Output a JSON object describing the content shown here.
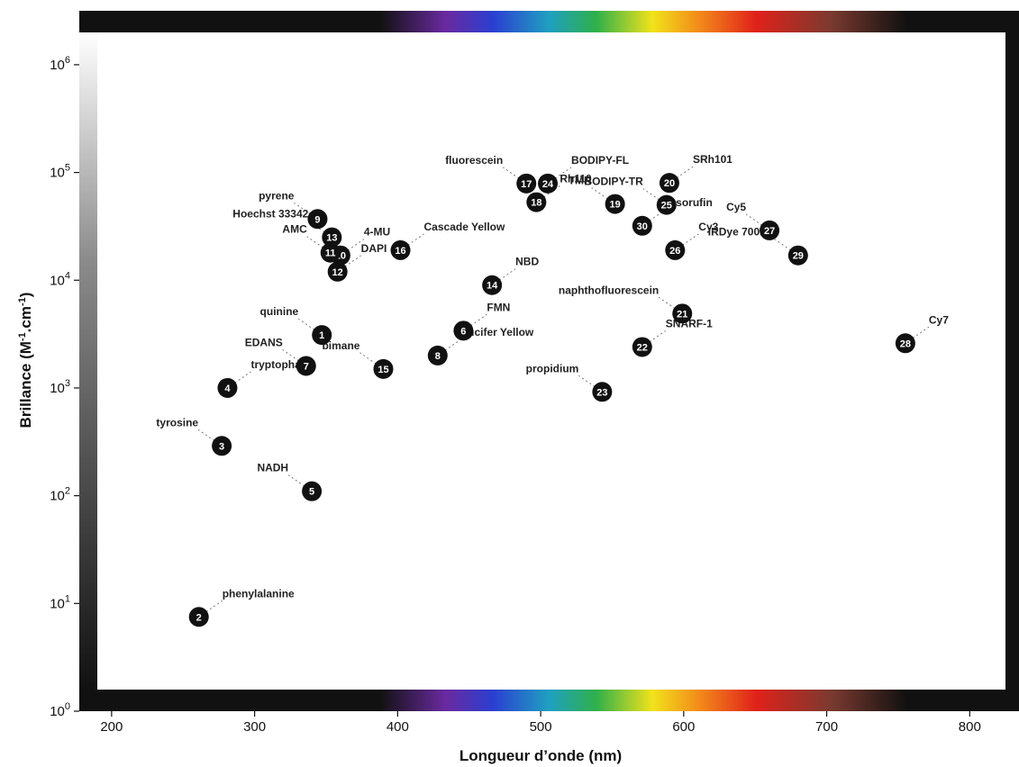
{
  "chart_data": {
    "type": "scatter",
    "title": "",
    "xlabel": "Longueur d’onde (nm)",
    "ylabel": "Brillance (M-1.cm-1)",
    "ylabel_parts": {
      "main": "Brillance (M",
      "sup1": "-1",
      "mid": ".cm",
      "sup2": "-1",
      "end": ")"
    },
    "xlim": [
      190,
      825
    ],
    "ylim_log10": [
      0,
      6.3
    ],
    "yscale": "log",
    "xticks": [
      200,
      300,
      400,
      500,
      600,
      700,
      800
    ],
    "yticks": [
      {
        "exp": 0,
        "base": "10",
        "sup": "0"
      },
      {
        "exp": 1,
        "base": "10",
        "sup": "1"
      },
      {
        "exp": 2,
        "base": "10",
        "sup": "2"
      },
      {
        "exp": 3,
        "base": "10",
        "sup": "3"
      },
      {
        "exp": 4,
        "base": "10",
        "sup": "4"
      },
      {
        "exp": 5,
        "base": "10",
        "sup": "5"
      },
      {
        "exp": 6,
        "base": "10",
        "sup": "6"
      }
    ],
    "grid": false,
    "legend": "none",
    "points": [
      {
        "id": "1",
        "x": 347,
        "y": 3100,
        "name": "quinine",
        "color": "#3a4fb0"
      },
      {
        "id": "2",
        "x": 261,
        "y": 7.5,
        "name": "phenylalanine",
        "color": "#555555"
      },
      {
        "id": "3",
        "x": 277,
        "y": 290,
        "name": "tyrosine",
        "color": "#555555"
      },
      {
        "id": "4",
        "x": 281,
        "y": 1000,
        "name": "tryptophan",
        "color": "#555555"
      },
      {
        "id": "5",
        "x": 340,
        "y": 110,
        "name": "NADH",
        "color": "#7a56b8"
      },
      {
        "id": "6",
        "x": 446,
        "y": 3400,
        "name": "FMN",
        "color": "#3fae4f"
      },
      {
        "id": "7",
        "x": 336,
        "y": 1600,
        "name": "EDANS",
        "color": "#49b068"
      },
      {
        "id": "8",
        "x": 428,
        "y": 2000,
        "name": "Lucifer Yellow",
        "color": "#6cbf3f"
      },
      {
        "id": "9",
        "x": 344,
        "y": 37000,
        "name": "pyrene",
        "color": "#555555"
      },
      {
        "id": "10",
        "x": 360,
        "y": 17000,
        "name": "4-MU",
        "color": "#7a56b8"
      },
      {
        "id": "11",
        "x": 353,
        "y": 18000,
        "name": "AMC",
        "color": "#7a56b8"
      },
      {
        "id": "12",
        "x": 358,
        "y": 12000,
        "name": "DAPI",
        "color": "#3a4fb0"
      },
      {
        "id": "13",
        "x": 354,
        "y": 25000,
        "name": "Hoechst 33342",
        "color": "#3a4fb0"
      },
      {
        "id": "14",
        "x": 466,
        "y": 9000,
        "name": "NBD",
        "color": "#3fae4f"
      },
      {
        "id": "15",
        "x": 390,
        "y": 1500,
        "name": "bimane",
        "color": "#3aa6cf"
      },
      {
        "id": "16",
        "x": 402,
        "y": 19000,
        "name": "Cascade Yellow",
        "color": "#8cbf3f"
      },
      {
        "id": "17",
        "x": 490,
        "y": 79000,
        "name": "fluorescein",
        "color": "#4bb86a"
      },
      {
        "id": "18",
        "x": 497,
        "y": 53000,
        "name": "Rh110",
        "color": "#3fae4f"
      },
      {
        "id": "19",
        "x": 552,
        "y": 51000,
        "name": "TMR",
        "color": "#c7c72a"
      },
      {
        "id": "20",
        "x": 590,
        "y": 80000,
        "name": "SRh101",
        "color": "#f06a3a"
      },
      {
        "id": "21",
        "x": 599,
        "y": 4900,
        "name": "naphthofluorescein",
        "color": "#c8705a"
      },
      {
        "id": "22",
        "x": 571,
        "y": 2400,
        "name": "SNARF-1",
        "color": "#f06a3a"
      },
      {
        "id": "23",
        "x": 543,
        "y": 920,
        "name": "propidium",
        "color": "#f06a3a"
      },
      {
        "id": "24",
        "x": 505,
        "y": 79000,
        "name": "BODIPY-FL",
        "color": "#3fae4f"
      },
      {
        "id": "25",
        "x": 588,
        "y": 50000,
        "name": "BODIPY-TR",
        "color": "#f06a3a"
      },
      {
        "id": "26",
        "x": 594,
        "y": 19000,
        "name": "Cy3",
        "color": "#c7c72a"
      },
      {
        "id": "27",
        "x": 660,
        "y": 29000,
        "name": "Cy5",
        "color": "#b8705a"
      },
      {
        "id": "28",
        "x": 755,
        "y": 2600,
        "name": "Cy7",
        "color": "#444444"
      },
      {
        "id": "29",
        "x": 680,
        "y": 17000,
        "name": "IRDye 700DX",
        "color": "#a0705a"
      },
      {
        "id": "30",
        "x": 571,
        "y": 32000,
        "name": "resorufin",
        "color": "#f0a030"
      }
    ]
  }
}
